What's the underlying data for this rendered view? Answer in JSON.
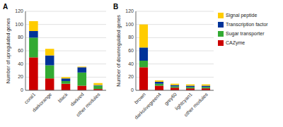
{
  "chart_data": [
    {
      "type": "bar",
      "stacked": true,
      "title": "A",
      "categories": [
        "coral1",
        "darkorange",
        "black",
        "darkred",
        "other modules"
      ],
      "series": [
        {
          "name": "CAZyme",
          "color": "#cc0000",
          "values": [
            50,
            18,
            10,
            7,
            2
          ]
        },
        {
          "name": "Sugar transporter",
          "color": "#33aa33",
          "values": [
            30,
            20,
            4,
            20,
            5
          ]
        },
        {
          "name": "Transcription factor",
          "color": "#003399",
          "values": [
            10,
            15,
            4,
            8,
            1
          ]
        },
        {
          "name": "Signal peptide",
          "color": "#ffcc00",
          "values": [
            15,
            10,
            2,
            1,
            3
          ]
        }
      ],
      "y_label": "Number of upregulated genes",
      "ylim": [
        0,
        120
      ],
      "yticks": [
        0,
        20,
        40,
        60,
        80,
        100,
        120
      ],
      "grid": true
    },
    {
      "type": "bar",
      "stacked": true,
      "title": "B",
      "categories": [
        "brown",
        "darkolivegreen4",
        "grey60",
        "lightcyan1",
        "other modules"
      ],
      "series": [
        {
          "name": "CAZyme",
          "color": "#cc0000",
          "values": [
            35,
            7,
            4,
            3,
            3
          ]
        },
        {
          "name": "Sugar transporter",
          "color": "#33aa33",
          "values": [
            10,
            3,
            2,
            2,
            2
          ]
        },
        {
          "name": "Transcription factor",
          "color": "#003399",
          "values": [
            20,
            3,
            2,
            2,
            2
          ]
        },
        {
          "name": "Signal peptide",
          "color": "#ffcc00",
          "values": [
            35,
            2,
            2,
            2,
            2
          ]
        }
      ],
      "y_label": "Number of downregulated genes",
      "ylim": [
        0,
        120
      ],
      "yticks": [
        0,
        20,
        40,
        60,
        80,
        100,
        120
      ],
      "grid": true,
      "legend": "right"
    }
  ]
}
